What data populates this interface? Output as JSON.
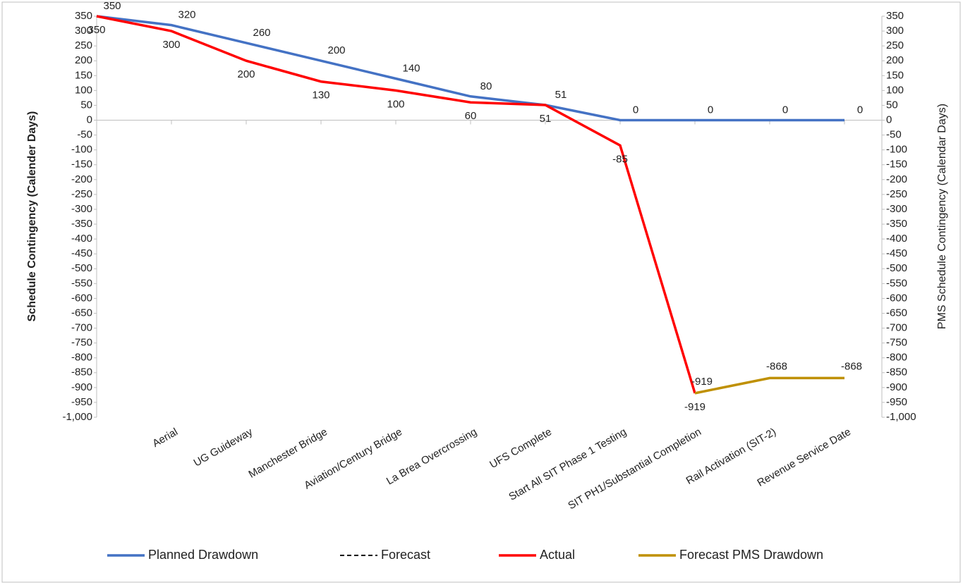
{
  "chart_data": {
    "type": "line",
    "categories": [
      null,
      "Aerial",
      "UG Guideway",
      "Manchester Bridge",
      "Aviation/Century Bridge",
      "La Brea Overcrossing",
      "UFS Complete",
      "Start All SIT Phase 1 Testing",
      "SIT PH1/Substantial Completion",
      "Rail Activation (SIT-2)",
      "Revenue Service Date"
    ],
    "series": [
      {
        "name": "Planned Drawdown",
        "color": "#4472c4",
        "values": [
          350,
          320,
          260,
          200,
          140,
          80,
          51,
          0,
          0,
          0,
          0
        ]
      },
      {
        "name": "Forecast",
        "color": "#000000",
        "dash": true,
        "values": [
          null,
          null,
          null,
          null,
          null,
          null,
          null,
          null,
          null,
          null,
          null
        ]
      },
      {
        "name": "Actual",
        "color": "#ff0000",
        "values": [
          350,
          300,
          200,
          130,
          100,
          60,
          51,
          -85,
          -919,
          null,
          null
        ]
      },
      {
        "name": "Forecast PMS Drawdown",
        "color": "#bf9000",
        "axis": "y2",
        "values": [
          null,
          null,
          null,
          null,
          null,
          null,
          null,
          null,
          -919,
          -868,
          -868
        ]
      }
    ],
    "ylabel": "Schedule Contingency (Calender Days)",
    "y2label": "PMS Schedule Contingency (Calendar Days)",
    "ylim": [
      -1000,
      350
    ],
    "yticks": [
      {
        "value": -1000,
        "label": "-1,000"
      },
      -950,
      -900,
      -850,
      -800,
      -750,
      -700,
      -650,
      -600,
      -550,
      -500,
      -450,
      -400,
      -350,
      -300,
      -250,
      -200,
      -150,
      -100,
      -50,
      0,
      50,
      100,
      150,
      200,
      250,
      300,
      350
    ],
    "y2lim": [
      -1000,
      350
    ],
    "y2ticks": [
      {
        "value": -1000,
        "label": "-1,000"
      },
      -950,
      -900,
      -850,
      -800,
      -750,
      -700,
      -650,
      -600,
      -550,
      -500,
      -450,
      -400,
      -350,
      -300,
      -250,
      -200,
      -150,
      -100,
      -50,
      0,
      50,
      100,
      150,
      200,
      250,
      300,
      350
    ],
    "legend": "bottom",
    "grid": false
  }
}
